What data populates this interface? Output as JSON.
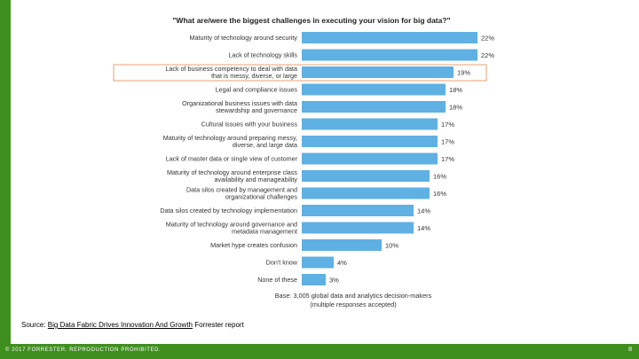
{
  "chart_data": {
    "type": "bar",
    "orientation": "horizontal",
    "title": "\"What are/were the biggest challenges in executing your vision for big data?\"",
    "categories": [
      [
        "Maturity of technology around security"
      ],
      [
        "Lack of technology skills"
      ],
      [
        "Lack of business competency to deal with data",
        "that is messy, diverse, or large"
      ],
      [
        "Legal and compliance issues"
      ],
      [
        "Organizational business issues with data",
        "stewardship and governance"
      ],
      [
        "Cultural issues with your business"
      ],
      [
        "Maturity of technology around preparing messy,",
        "diverse, and large data"
      ],
      [
        "Lack of master data or single view of customer"
      ],
      [
        "Maturity of technology around enterprise class",
        "availability and manageability"
      ],
      [
        "Data silos created by management and",
        "organizational challenges"
      ],
      [
        "Data silos created by technology implementation"
      ],
      [
        "Maturity of technology around governance and",
        "metadata management"
      ],
      [
        "Market hype creates confusion"
      ],
      [
        "Don't know"
      ],
      [
        "None of these"
      ]
    ],
    "values": [
      22,
      22,
      19,
      18,
      18,
      17,
      17,
      17,
      16,
      16,
      14,
      14,
      10,
      4,
      3
    ],
    "value_labels": [
      "22%",
      "22%",
      "19%",
      "18%",
      "18%",
      "17%",
      "17%",
      "17%",
      "16%",
      "16%",
      "14%",
      "14%",
      "10%",
      "4%",
      "3%"
    ],
    "highlighted_index": 2,
    "xlim": [
      0,
      22
    ],
    "grid": false,
    "bar_color": "#5fb0e3",
    "highlight_color": "#e8a070",
    "note": [
      "Base: 3,005 global data and analytics decision-makers",
      "(multiple responses accepted)"
    ]
  },
  "source": {
    "prefix": "Source: ",
    "link_text": "Big Data Fabric Drives Innovation And Growth",
    "suffix": " Forrester report"
  },
  "footer": {
    "copyright": "© 2017 FORRESTER. REPRODUCTION PROHIBITED.",
    "page_number": "8"
  },
  "colors": {
    "accent": "#3f8f1f"
  }
}
